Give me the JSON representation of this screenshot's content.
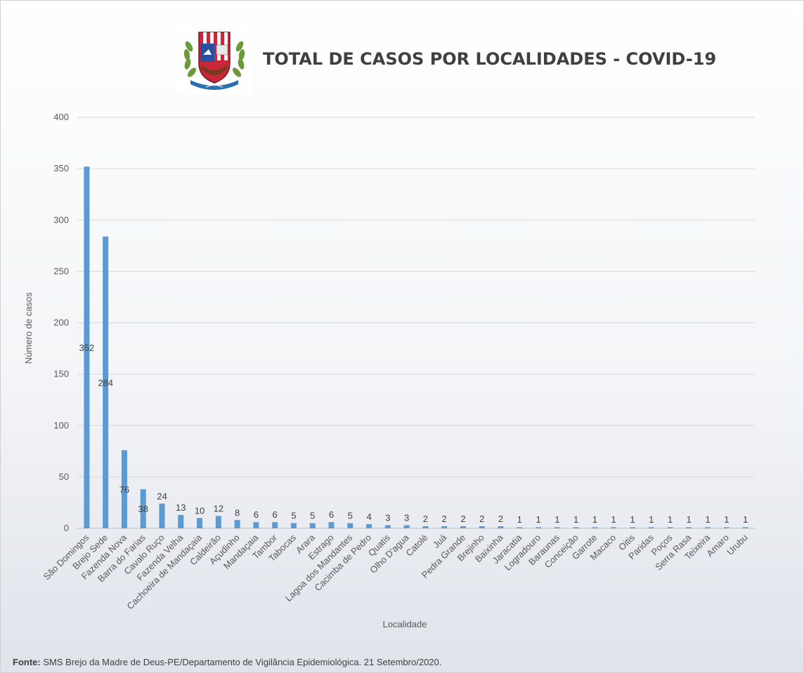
{
  "header": {
    "title": "TOTAL DE CASOS POR LOCALIDADES - COVID-19"
  },
  "footer": {
    "source_label": "Fonte:",
    "source_text": "SMS Brejo da Madre de Deus-PE/Departamento de Vigilância Epidemiológica. 21 Setembro/2020."
  },
  "colors": {
    "bar": "#5b9bd5",
    "grid": "#d9d9d9",
    "axis_text": "#595959",
    "label_text": "#404040"
  },
  "chart_data": {
    "type": "bar",
    "xlabel": "Localidade",
    "ylabel": "Número de casos",
    "ylim": [
      0,
      400
    ],
    "yticks": [
      0,
      50,
      100,
      150,
      200,
      250,
      300,
      350,
      400
    ],
    "grid": true,
    "legend": "none",
    "categories": [
      "São Domingos",
      "Brejo Sede",
      "Fazenda Nova",
      "Barra do Farias",
      "Cavalo Ruço",
      "Fazenda Velha",
      "Cachoeira de Mandaçaia",
      "Caldeirão",
      "Açudinho",
      "Mandaçaia",
      "Tambor",
      "Tabocas",
      "Arara",
      "Estrago",
      "Lagoa dos Mandantes",
      "Cacimba de Pedro",
      "Quatis",
      "Olho D'agua",
      "Catolé",
      "Juá",
      "Pedra Grande",
      "Brejinho",
      "Baixinha",
      "Jaracatia",
      "Logradouro",
      "Baraunas",
      "Conceição",
      "Garrote",
      "Macaco",
      "Oitis",
      "Paridas",
      "Poços",
      "Serra Rasa",
      "Teixeira",
      "Amaro",
      "Urubu"
    ],
    "values": [
      352,
      284,
      76,
      38,
      24,
      13,
      10,
      12,
      8,
      6,
      6,
      5,
      5,
      6,
      5,
      4,
      3,
      3,
      2,
      2,
      2,
      2,
      2,
      1,
      1,
      1,
      1,
      1,
      1,
      1,
      1,
      1,
      1,
      1,
      1,
      1
    ]
  }
}
